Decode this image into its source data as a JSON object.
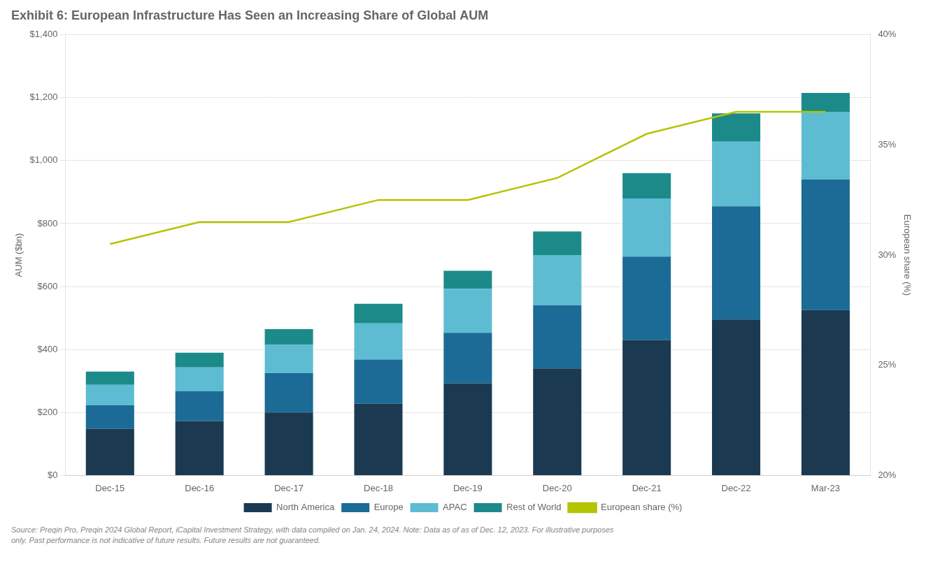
{
  "chart_data": {
    "type": "bar",
    "stacked": true,
    "title": "Exhibit 6: European Infrastructure Has Seen an Increasing Share of Global AUM",
    "categories": [
      "Dec-15",
      "Dec-16",
      "Dec-17",
      "Dec-18",
      "Dec-19",
      "Dec-20",
      "Dec-21",
      "Dec-22",
      "Mar-23"
    ],
    "series": [
      {
        "name": "North America",
        "color": "#1b3a52",
        "values": [
          148,
          173,
          200,
          228,
          293,
          340,
          430,
          495,
          525
        ]
      },
      {
        "name": "Europe",
        "color": "#1c6b96",
        "values": [
          75,
          95,
          125,
          140,
          160,
          200,
          265,
          360,
          415
        ]
      },
      {
        "name": "APAC",
        "color": "#5dbcd2",
        "values": [
          65,
          75,
          90,
          115,
          140,
          160,
          185,
          205,
          215
        ]
      },
      {
        "name": "Rest of World",
        "color": "#1d8a8a",
        "values": [
          42,
          47,
          50,
          62,
          57,
          75,
          80,
          90,
          60
        ]
      },
      {
        "name": "European share (%)",
        "type": "line",
        "axis": "y2",
        "color": "#b5c400",
        "values": [
          30.5,
          31.5,
          31.5,
          32.5,
          32.5,
          33.5,
          35.5,
          36.5,
          36.5
        ]
      }
    ],
    "ylabel": "AUM ($bn)",
    "y2label": "European share (%)",
    "ylim": [
      0,
      1400
    ],
    "yticks": [
      {
        "value": 0,
        "label": "$0"
      },
      {
        "value": 200,
        "label": "$200"
      },
      {
        "value": 400,
        "label": "$400"
      },
      {
        "value": 600,
        "label": "$600"
      },
      {
        "value": 800,
        "label": "$800"
      },
      {
        "value": 1000,
        "label": "$1,000"
      },
      {
        "value": 1200,
        "label": "$1,200"
      },
      {
        "value": 1400,
        "label": "$1,400"
      }
    ],
    "y2lim": [
      20,
      40
    ],
    "y2ticks": [
      {
        "value": 20,
        "label": "20%"
      },
      {
        "value": 25,
        "label": "25%"
      },
      {
        "value": 30,
        "label": "30%"
      },
      {
        "value": 35,
        "label": "35%"
      },
      {
        "value": 40,
        "label": "40%"
      }
    ],
    "grid": true,
    "legend": "bottom",
    "annotations": [
      "Source: Preqin Pro, Preqin 2024 Global Report, iCapital Investment Strategy, with data compiled on Jan. 24, 2024. Note: Data as of as of Dec. 12, 2023. For illustrative purposes\nonly. Past performance is not indicative of future results. Future results are not guaranteed."
    ]
  }
}
